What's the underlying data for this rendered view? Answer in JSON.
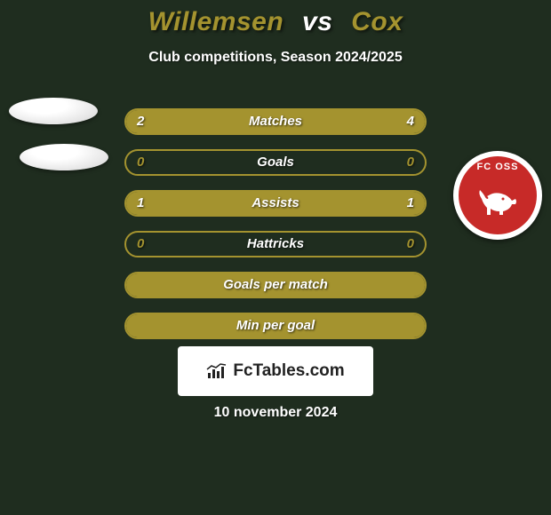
{
  "background_color": "#1f2d1f",
  "player_left_color": "#a4932f",
  "player_right_color": "#a4932f",
  "title": {
    "left": "Willemsen",
    "vs": "vs",
    "right": "Cox"
  },
  "subtitle": "Club competitions, Season 2024/2025",
  "rows": [
    {
      "label": "Matches",
      "left_val": "2",
      "right_val": "4",
      "left_pct": 33,
      "right_pct": 67,
      "show_vals": true
    },
    {
      "label": "Goals",
      "left_val": "0",
      "right_val": "0",
      "left_pct": 0,
      "right_pct": 0,
      "show_vals": true
    },
    {
      "label": "Assists",
      "left_val": "1",
      "right_val": "1",
      "left_pct": 50,
      "right_pct": 50,
      "show_vals": true
    },
    {
      "label": "Hattricks",
      "left_val": "0",
      "right_val": "0",
      "left_pct": 0,
      "right_pct": 0,
      "show_vals": true
    },
    {
      "label": "Goals per match",
      "left_val": "",
      "right_val": "",
      "left_pct": 100,
      "right_pct": 0,
      "show_vals": false
    },
    {
      "label": "Min per goal",
      "left_val": "",
      "right_val": "",
      "left_pct": 100,
      "right_pct": 0,
      "show_vals": false
    }
  ],
  "bar_style": {
    "border_color": "#a4932f",
    "left_fill_color": "#a4932f",
    "right_fill_color": "#a4932f",
    "empty_fill_color": "transparent",
    "value_text_color_left": "#a4932f",
    "value_text_color_right": "#a4932f",
    "label_text_color": "#ffffff",
    "height": 30,
    "gap": 16,
    "border_radius": 15
  },
  "right_club": {
    "name": "FC OSS",
    "bg_color": "#c72a28",
    "bull_color": "#ffffff"
  },
  "watermark": {
    "text": "FcTables.com",
    "bg": "#ffffff",
    "text_color": "#222222"
  },
  "date_text": "10 november 2024"
}
